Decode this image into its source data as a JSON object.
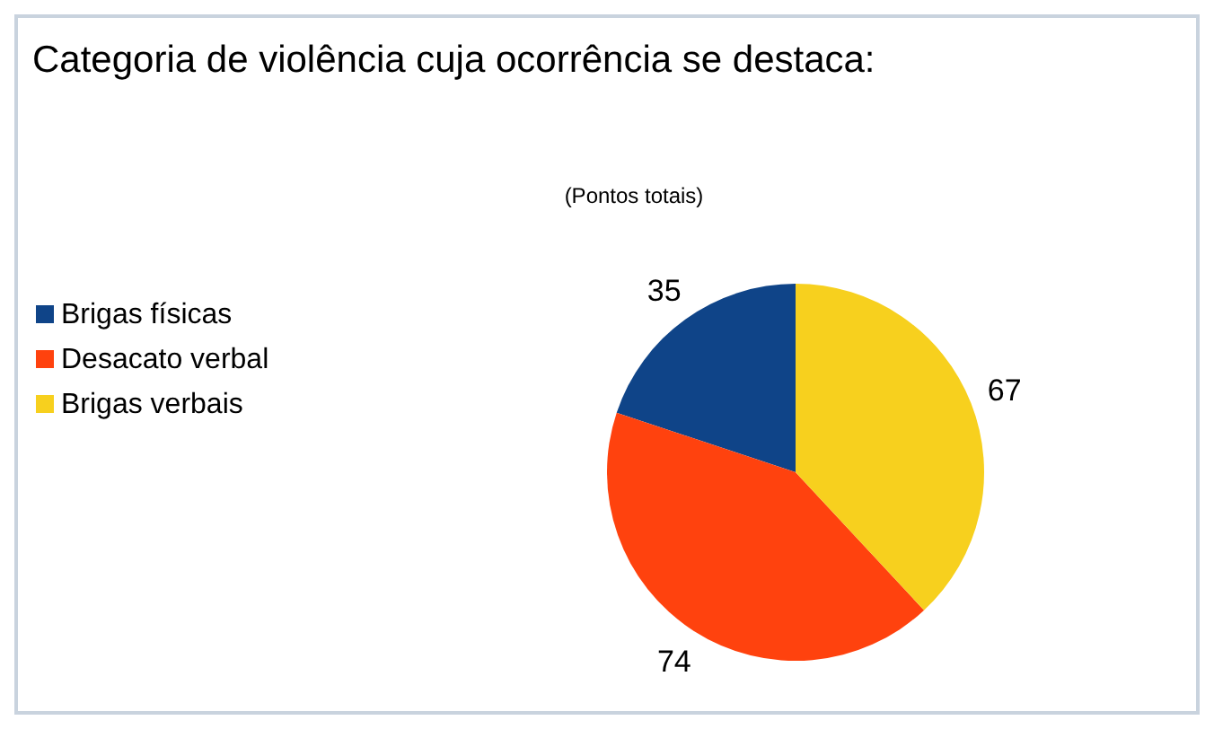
{
  "chart_data": {
    "type": "pie",
    "title": "Categoria de violência cuja ocorrência se destaca:",
    "subtitle": "(Pontos totais)",
    "categories": [
      "Brigas físicas",
      "Desacato verbal",
      "Brigas verbais"
    ],
    "values": [
      35,
      74,
      67
    ],
    "colors": [
      "#0f4488",
      "#ff420e",
      "#f7d01e"
    ],
    "data_labels": true,
    "legend": "left"
  }
}
